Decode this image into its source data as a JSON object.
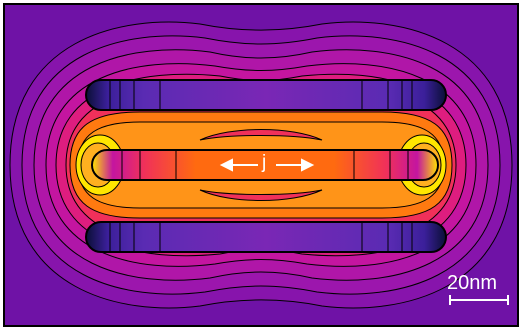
{
  "figure": {
    "current_label": "j",
    "scale_bar_label": "20nm"
  },
  "colors": {
    "background_outer": "#7a11a8",
    "field_magenta": "#c415a0",
    "field_red": "#f0305a",
    "field_orange": "#ff7a10",
    "field_yellow": "#ffe600",
    "rod_violet": "#5a2bb3",
    "rod_dark": "#0a0f35",
    "contour": "#000000",
    "annotation": "#ffffff"
  }
}
